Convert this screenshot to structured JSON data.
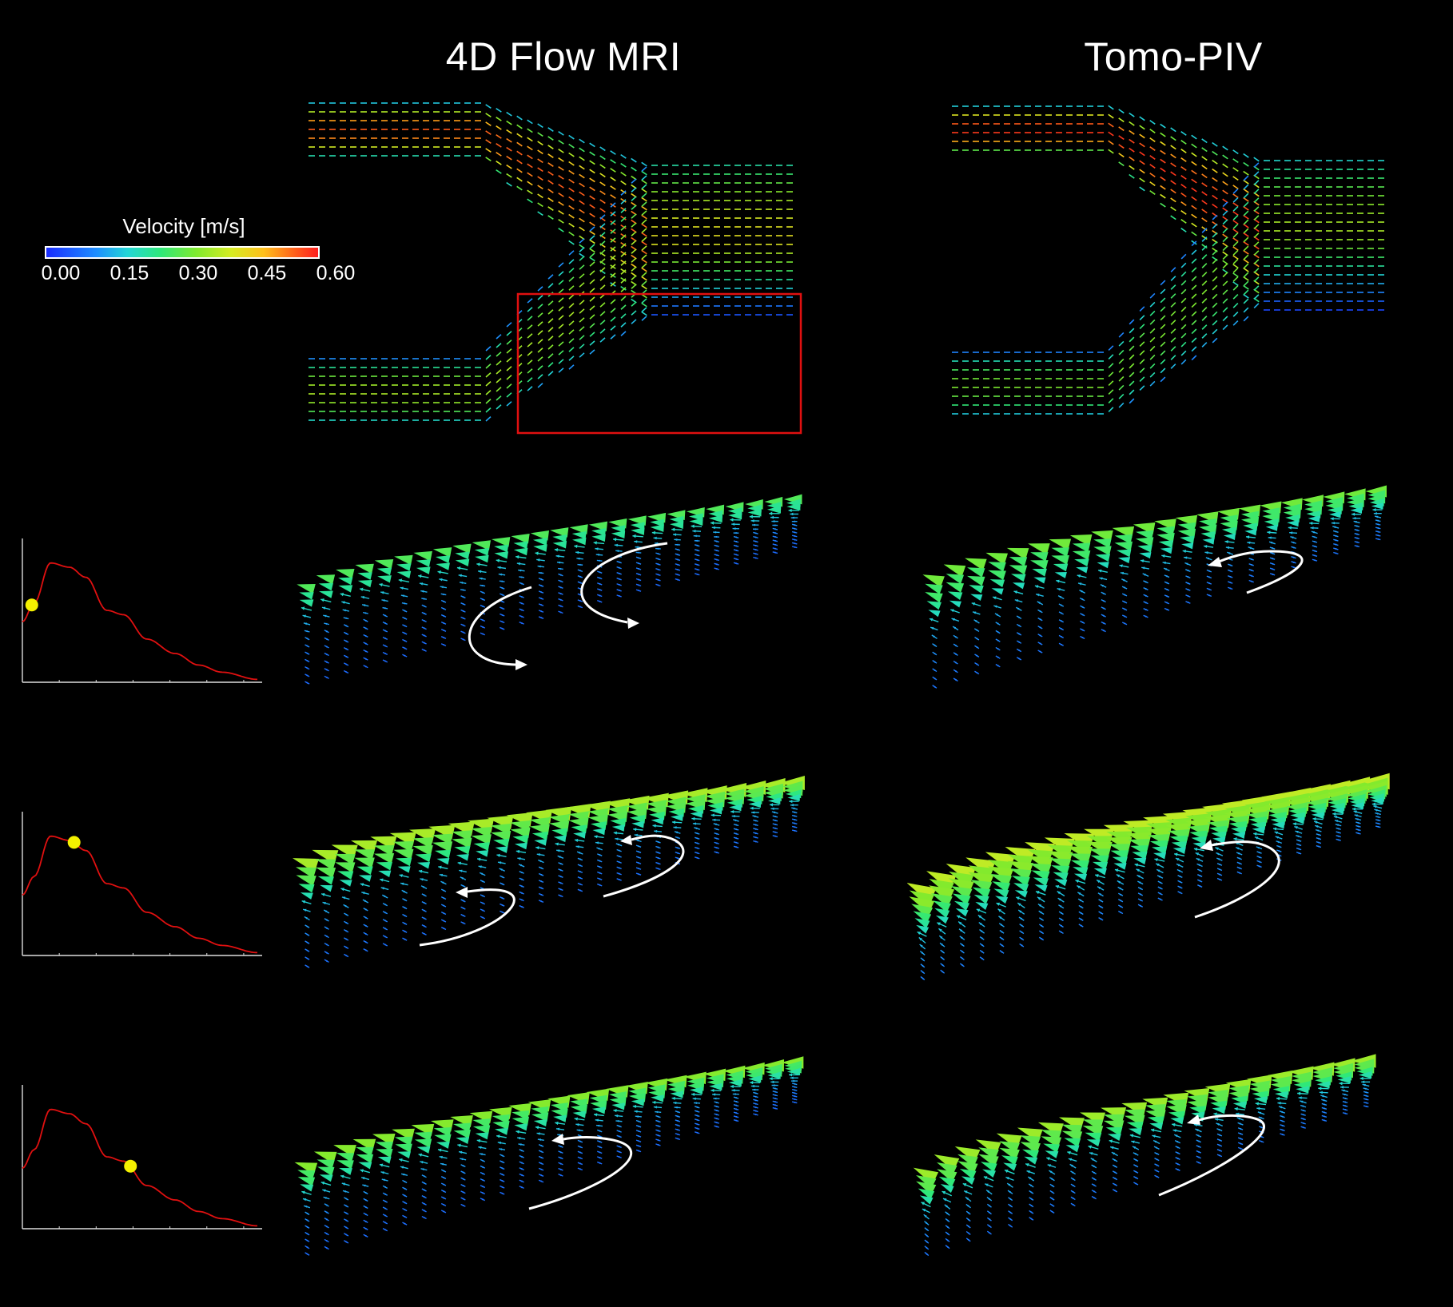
{
  "columns": {
    "left_title": "4D Flow MRI",
    "right_title": "Tomo-PIV"
  },
  "legend": {
    "title": "Velocity [m/s]",
    "ticks": [
      "0.00",
      "0.15",
      "0.30",
      "0.45",
      "0.60"
    ],
    "colormap": [
      "#1a2cff",
      "#22d6d6",
      "#2ee87a",
      "#d6ec22",
      "#ff1e1e"
    ]
  },
  "highlight_box_color": "#e01010",
  "waveform_line_color": "#e01010",
  "phase_marker_color": "#f4f000",
  "waveform_markers": [
    0.04,
    0.22,
    0.46
  ]
}
